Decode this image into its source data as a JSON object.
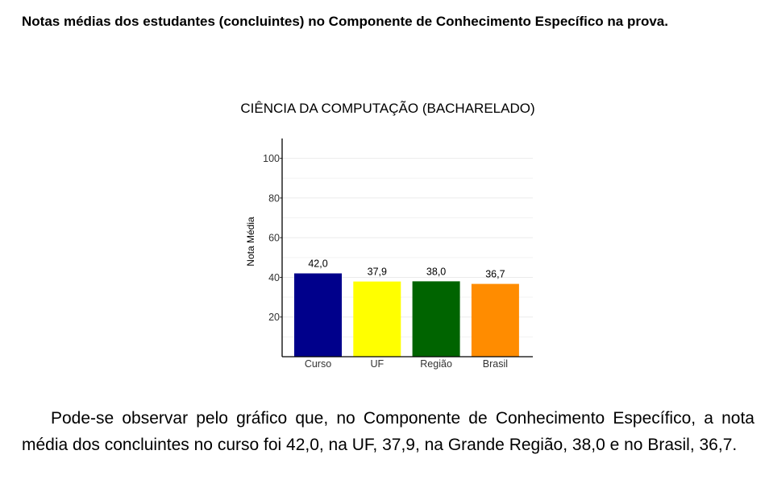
{
  "heading": "Notas médias dos estudantes (concluintes) no Componente de Conhecimento Específico na prova.",
  "paragraph": "Pode-se observar pelo gráfico que, no Componente de Conhecimento Específico, a nota média dos concluintes no curso foi 42,0, na UF, 37,9, na Grande Região, 38,0 e no Brasil, 36,7.",
  "colors": {
    "Curso": "#00008b",
    "UF": "#ffff00",
    "Região": "#006400",
    "Brasil": "#ff8c00"
  },
  "chart_data": {
    "type": "bar",
    "title": "CIÊNCIA DA COMPUTAÇÃO (BACHARELADO)",
    "xlabel": "",
    "ylabel": "Nota Média",
    "categories": [
      "Curso",
      "UF",
      "Região",
      "Brasil"
    ],
    "values": [
      42.0,
      37.9,
      38.0,
      36.7
    ],
    "value_labels": [
      "42,0",
      "37,9",
      "38,0",
      "36,7"
    ],
    "yticks": [
      20,
      40,
      60,
      80,
      100
    ],
    "ylim": [
      0,
      110
    ],
    "grid": true,
    "legend": "none"
  }
}
